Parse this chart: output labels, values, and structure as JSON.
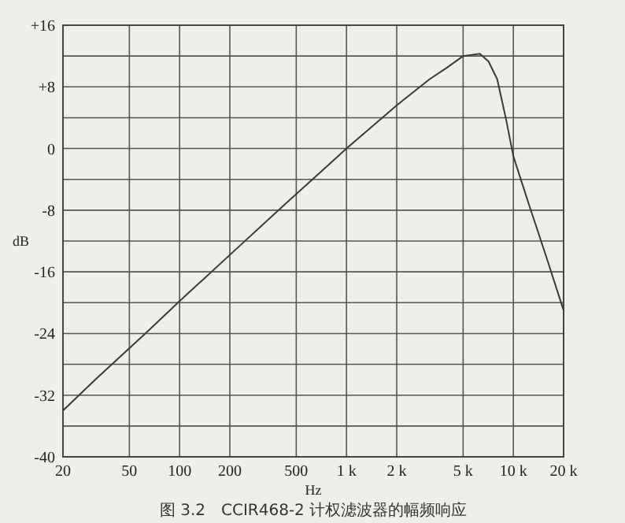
{
  "chart_data": {
    "type": "line",
    "xlabel": "Hz",
    "ylabel": "dB",
    "annotations": [
      "图 3.2　CCIR468-2 计权滤波器的幅频响应"
    ],
    "log": "x",
    "grid": true,
    "xlim": [
      20,
      20000
    ],
    "ylim": [
      -40,
      16
    ],
    "xticks": [
      20,
      50,
      100,
      200,
      500,
      {
        "value": 1000,
        "label": "1 k"
      },
      {
        "value": 2000,
        "label": "2 k"
      },
      {
        "value": 5000,
        "label": "5 k"
      },
      {
        "value": 10000,
        "label": "10 k"
      },
      {
        "value": 20000,
        "label": "20 k"
      }
    ],
    "yticks": [
      {
        "value": 16,
        "label": "+16"
      },
      {
        "value": 12,
        "label": null
      },
      {
        "value": 8,
        "label": "+8"
      },
      {
        "value": 4,
        "label": null
      },
      0,
      {
        "value": -4,
        "label": null
      },
      -8,
      {
        "value": -12,
        "label": null
      },
      -16,
      {
        "value": -20,
        "label": null
      },
      -24,
      {
        "value": -28,
        "label": null
      },
      -32,
      {
        "value": -36,
        "label": null
      },
      -40
    ],
    "series": [
      {
        "color": "#3a3a3a",
        "x": [
          20,
          31.5,
          63,
          100,
          200,
          400,
          800,
          1000,
          2000,
          3150,
          4000,
          5000,
          6300,
          7100,
          8000,
          9000,
          10000,
          12500,
          14000,
          16000,
          20000
        ],
        "values": [
          -34,
          -29.9,
          -23.9,
          -19.8,
          -13.8,
          -7.8,
          -1.9,
          0,
          5.6,
          9,
          10.5,
          12,
          12.3,
          11.3,
          9,
          4,
          -1,
          -7.5,
          -10.7,
          -14.5,
          -21
        ]
      }
    ]
  }
}
